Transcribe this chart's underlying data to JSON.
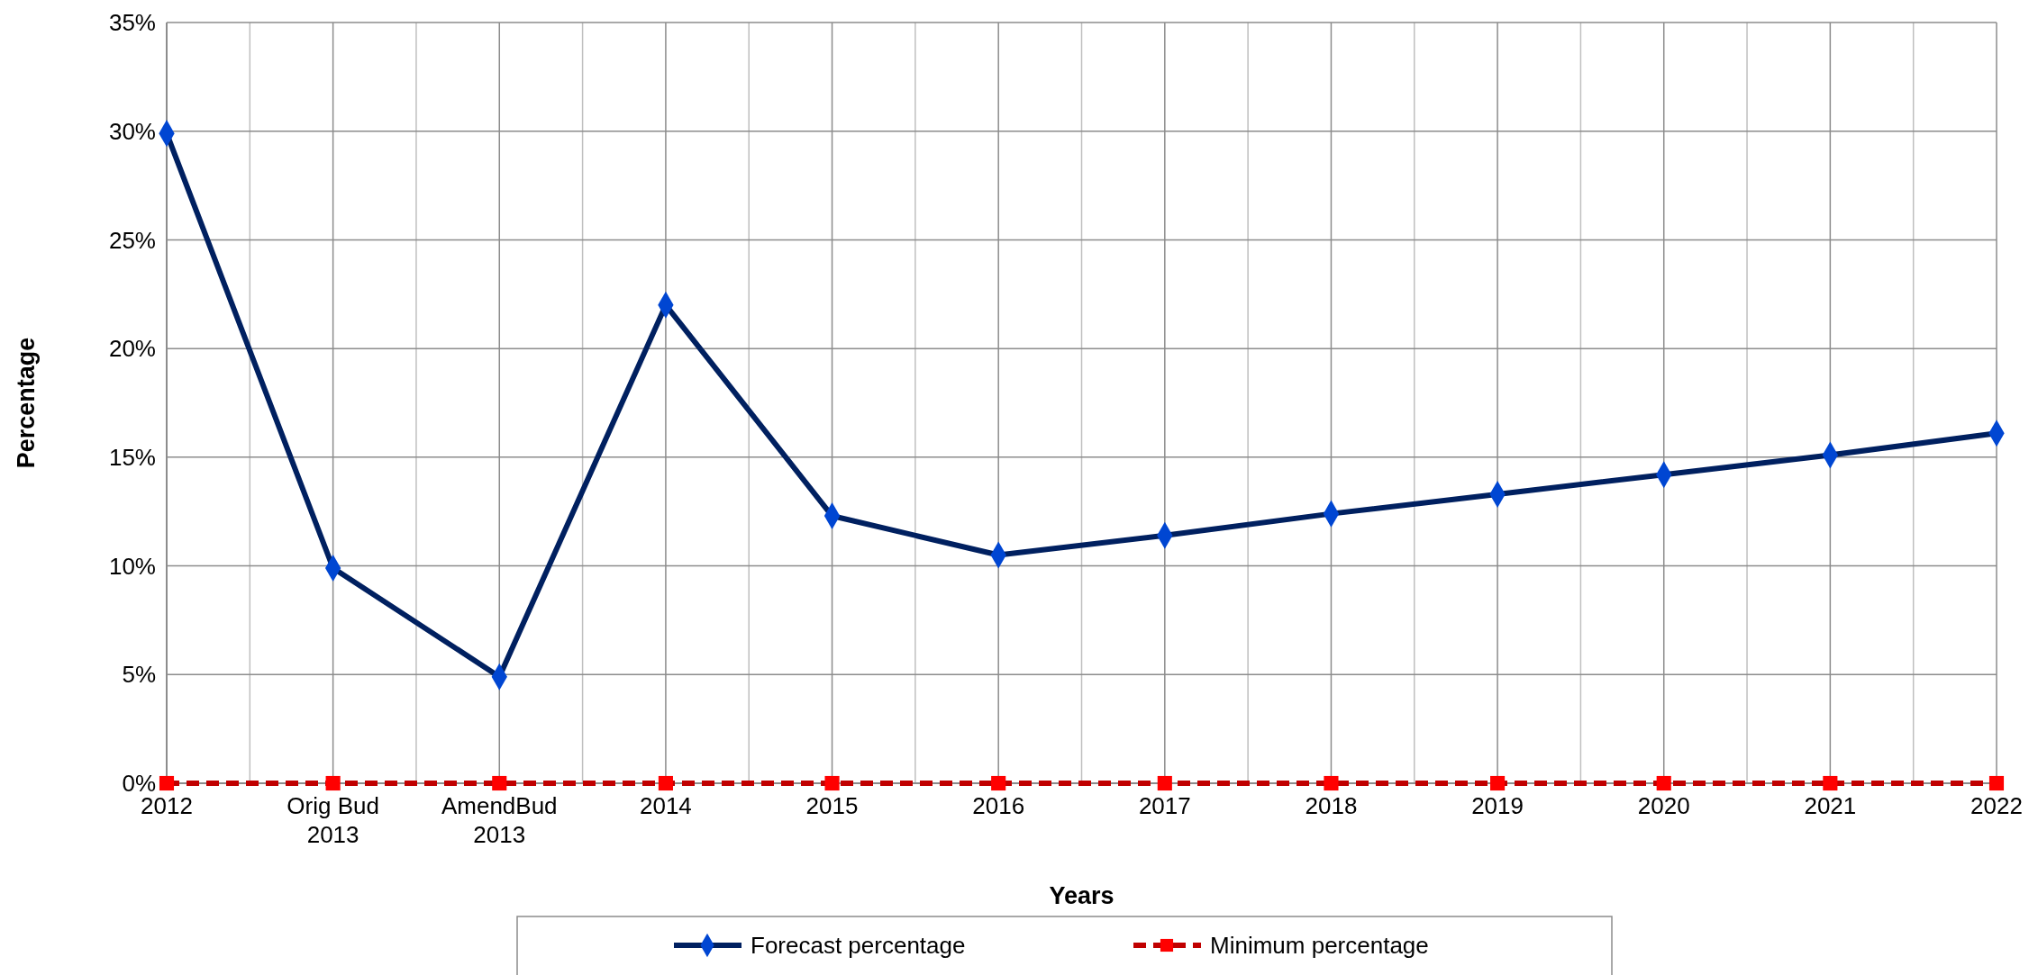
{
  "chart_data": {
    "type": "line",
    "xlabel": "Years",
    "ylabel": "Percentage",
    "categories": [
      "2012",
      "Orig Bud 2013",
      "AmendBud 2013",
      "2014",
      "2015",
      "2016",
      "2017",
      "2018",
      "2019",
      "2020",
      "2021",
      "2022"
    ],
    "series": [
      {
        "name": "Forecast percentage",
        "color": "#002060",
        "marker": "diamond",
        "line_style": "solid",
        "values": [
          29.9,
          9.9,
          4.9,
          22.0,
          12.3,
          10.5,
          11.4,
          12.4,
          13.3,
          14.2,
          15.1,
          16.1
        ]
      },
      {
        "name": "Minimum percentage",
        "color": "#c00000",
        "marker": "square",
        "line_style": "dashed",
        "values": [
          0,
          0,
          0,
          0,
          0,
          0,
          0,
          0,
          0,
          0,
          0,
          0
        ]
      }
    ],
    "ylim": [
      0,
      35
    ],
    "yticks": [
      {
        "value": 0,
        "label": "0%"
      },
      {
        "value": 5,
        "label": "5%"
      },
      {
        "value": 10,
        "label": "10%"
      },
      {
        "value": 15,
        "label": "15%"
      },
      {
        "value": 20,
        "label": "20%"
      },
      {
        "value": 25,
        "label": "25%"
      },
      {
        "value": 30,
        "label": "30%"
      },
      {
        "value": 35,
        "label": "35%"
      }
    ],
    "grid": true,
    "legend": "bottom"
  }
}
